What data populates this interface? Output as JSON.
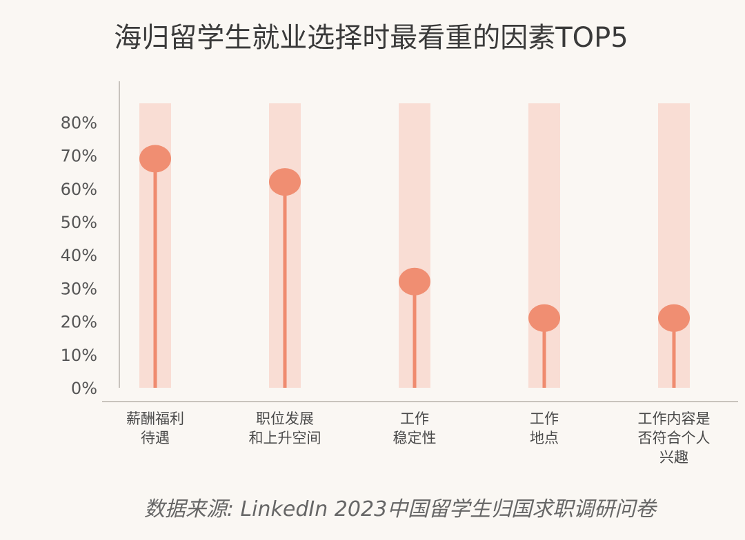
{
  "chart_data": {
    "type": "lollipop",
    "title": "海归留学生就业选择时最看重的因素TOP5",
    "categories": [
      [
        "薪酬福利",
        "待遇"
      ],
      [
        "职位发展",
        "和上升空间"
      ],
      [
        "工作",
        "稳定性"
      ],
      [
        "工作",
        "地点"
      ],
      [
        "工作内容是",
        "否符合个人",
        "兴趣"
      ]
    ],
    "values": [
      69,
      62,
      32,
      21,
      21
    ],
    "y_ticks": [
      "80%",
      "70%",
      "60%",
      "50%",
      "40%",
      "30%",
      "20%",
      "10%",
      "0%"
    ],
    "ylim": [
      0,
      85
    ],
    "source": "数据来源:  LinkedIn 2023中国留学生归国求职调研问卷",
    "colors": {
      "band": "#f9ddd4",
      "stem": "#ef8b6f",
      "marker": "#f08e72",
      "axis": "#c8c3bd"
    }
  }
}
